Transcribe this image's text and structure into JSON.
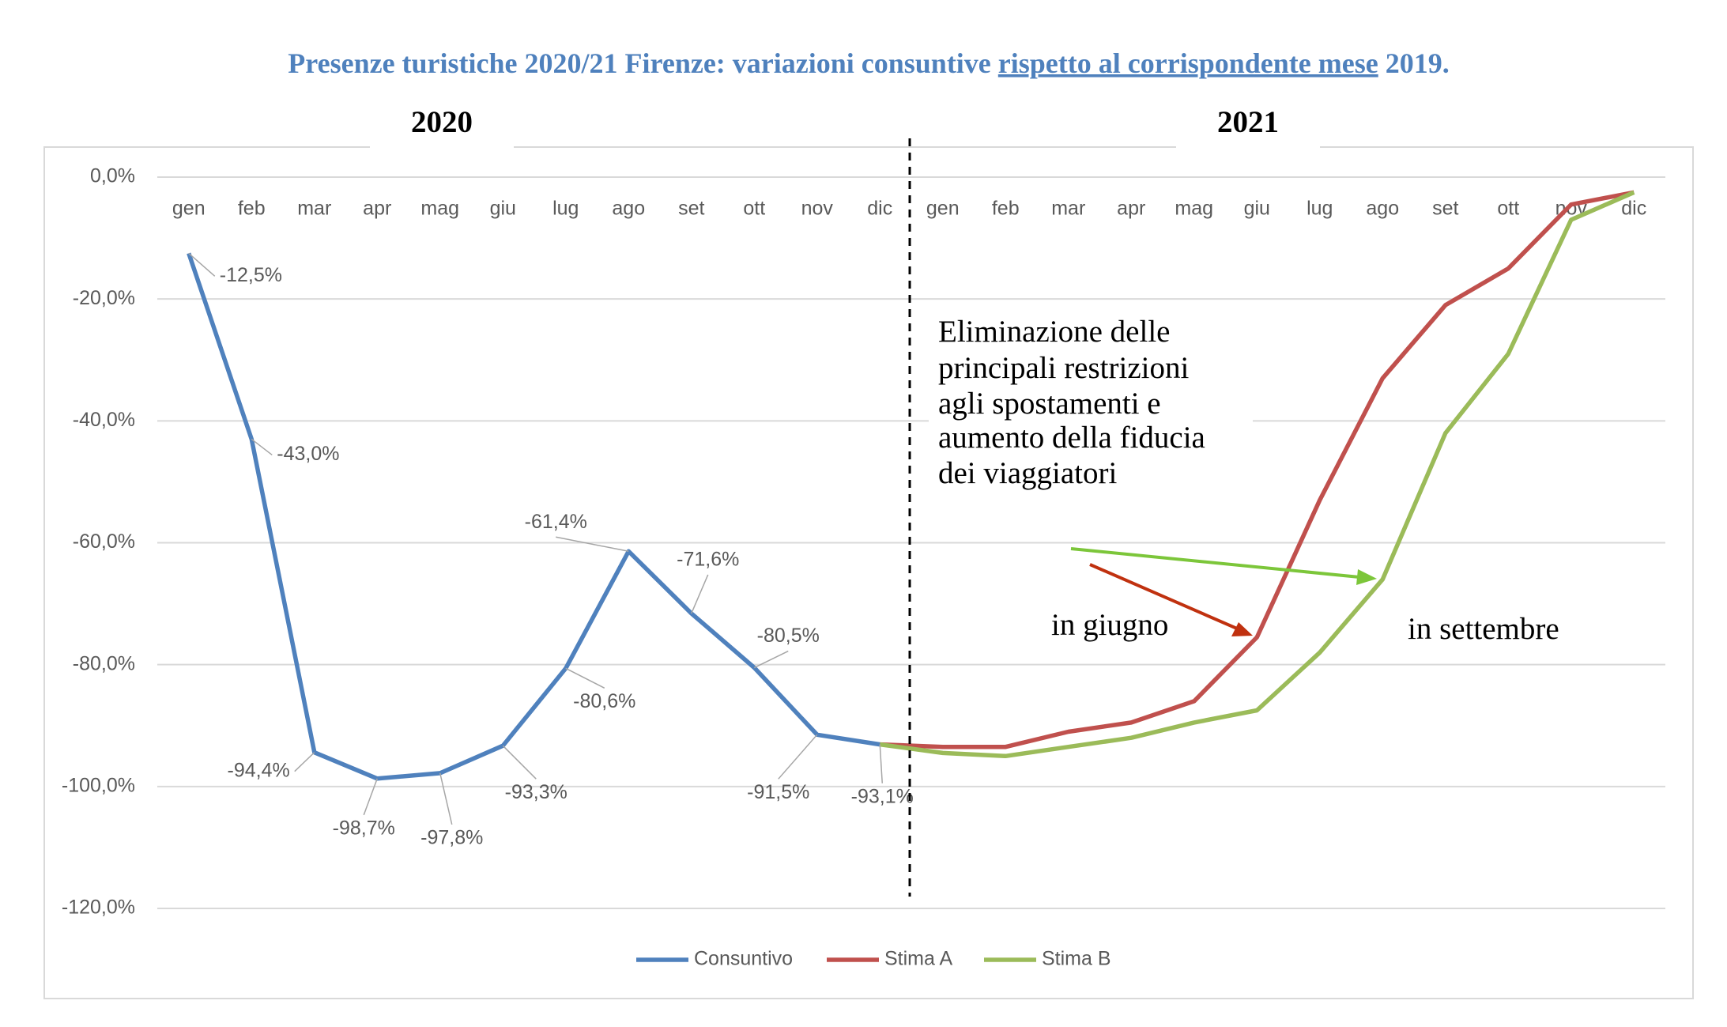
{
  "chart_data": {
    "type": "line",
    "title_parts": [
      "Presenze turistiche 2020/21 Firenze: variazioni consuntive ",
      "rispetto al corrispondente mese",
      " 2019."
    ],
    "year_labels": [
      "2020",
      "2021"
    ],
    "note_lines": [
      "Eliminazione delle",
      "principali restrizioni",
      "agli spostamenti e",
      "aumento della fiducia",
      "dei viaggiatori"
    ],
    "arrow_labels": [
      "in giugno",
      "in settembre"
    ],
    "categories": [
      "gen",
      "feb",
      "mar",
      "apr",
      "mag",
      "giu",
      "lug",
      "ago",
      "set",
      "ott",
      "nov",
      "dic",
      "gen",
      "feb",
      "mar",
      "apr",
      "mag",
      "giu",
      "lug",
      "ago",
      "set",
      "ott",
      "nov",
      "dic"
    ],
    "series": [
      {
        "name": "Consuntivo",
        "color": "#4f81bd",
        "values": [
          -12.5,
          -43.0,
          -94.4,
          -98.7,
          -97.8,
          -93.3,
          -80.6,
          -61.4,
          -71.6,
          -80.5,
          -91.5,
          -93.1,
          null,
          null,
          null,
          null,
          null,
          null,
          null,
          null,
          null,
          null,
          null,
          null
        ],
        "value_labels": [
          "-12,5%",
          "-43,0%",
          "-94,4%",
          "-98,7%",
          "-97,8%",
          "-93,3%",
          "-80,6%",
          "-61,4%",
          "-71,6%",
          "-80,5%",
          "-91,5%",
          "-93,1%",
          null,
          null,
          null,
          null,
          null,
          null,
          null,
          null,
          null,
          null,
          null,
          null
        ]
      },
      {
        "name": "Stima A",
        "color": "#c0504d",
        "values": [
          null,
          null,
          null,
          null,
          null,
          null,
          null,
          null,
          null,
          null,
          null,
          -93.1,
          -93.5,
          -93.5,
          -91,
          -89.5,
          -86,
          -75.5,
          -53,
          -33,
          -21,
          -15,
          -4.5,
          -2.5
        ]
      },
      {
        "name": "Stima B",
        "color": "#9bbb59",
        "values": [
          null,
          null,
          null,
          null,
          null,
          null,
          null,
          null,
          null,
          null,
          null,
          -93.1,
          -94.5,
          -95,
          -93.5,
          -92,
          -89.5,
          -87.5,
          -78,
          -66,
          -42,
          -29,
          -7,
          -2.5
        ]
      }
    ],
    "ylim": [
      -120,
      0
    ],
    "yticks": [
      {
        "value": 0,
        "label": "0,0%"
      },
      {
        "value": -20,
        "label": "-20,0%"
      },
      {
        "value": -40,
        "label": "-40,0%"
      },
      {
        "value": -60,
        "label": "-60,0%"
      },
      {
        "value": -80,
        "label": "-80,0%"
      },
      {
        "value": -100,
        "label": "-100,0%"
      },
      {
        "value": -120,
        "label": "-120,0%"
      }
    ],
    "grid": true,
    "legend": "bottom"
  }
}
